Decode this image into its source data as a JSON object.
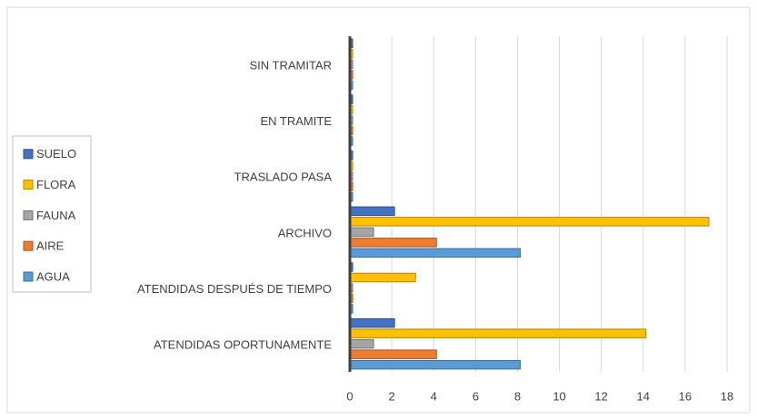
{
  "chart_data": {
    "type": "bar",
    "orientation": "horizontal",
    "categories": [
      "ATENDIDAS OPORTUNAMENTE",
      "ATENDIDAS DESPUÉS DE TIEMPO",
      "ARCHIVO",
      "TRASLADO PASA",
      "EN TRAMITE",
      "SIN TRAMITAR"
    ],
    "series": [
      {
        "name": "AGUA",
        "color": "#5b9bd5",
        "values": [
          8,
          0,
          8,
          0,
          0,
          0
        ]
      },
      {
        "name": "AIRE",
        "color": "#ed7d31",
        "values": [
          4,
          0,
          4,
          0,
          0,
          0
        ]
      },
      {
        "name": "FAUNA",
        "color": "#a5a5a5",
        "values": [
          1,
          0,
          1,
          0,
          0,
          0
        ]
      },
      {
        "name": "FLORA",
        "color": "#ffc000",
        "values": [
          14,
          3,
          17,
          0,
          0,
          0
        ]
      },
      {
        "name": "SUELO",
        "color": "#4472c4",
        "values": [
          2,
          0,
          2,
          0,
          0,
          0
        ]
      }
    ],
    "xlim": [
      0,
      18
    ],
    "xticks": [
      0,
      2,
      4,
      6,
      8,
      10,
      12,
      14,
      16,
      18
    ],
    "grid": true,
    "legend": "left"
  }
}
